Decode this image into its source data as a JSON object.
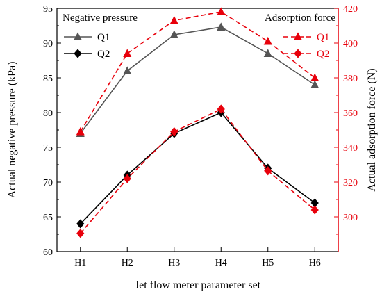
{
  "chart_data": {
    "type": "line",
    "title": "",
    "xlabel": "Jet flow meter parameter set",
    "categories": [
      "H1",
      "H2",
      "H3",
      "H4",
      "H5",
      "H6"
    ],
    "y_left": {
      "label": "Actual negative pressure (kPa)",
      "lim": [
        60,
        95
      ],
      "ticks": [
        60,
        65,
        70,
        75,
        80,
        85,
        90,
        95
      ],
      "color": "#000000"
    },
    "y_right": {
      "label": "Actual adsorption force (N)",
      "lim": [
        280,
        420
      ],
      "ticks": [
        300,
        320,
        340,
        360,
        380,
        400,
        420
      ],
      "color": "#e8000b"
    },
    "legends": [
      {
        "title": "Negative pressure",
        "placement": "top-left",
        "entries": [
          "Q1",
          "Q2"
        ]
      },
      {
        "title": "Adsorption force",
        "placement": "top-right",
        "entries": [
          "Q1",
          "Q2"
        ]
      }
    ],
    "series": [
      {
        "name": "Q1",
        "axis": "left",
        "marker": "triangle",
        "line": "solid",
        "color": "#555555",
        "values": [
          77,
          86,
          91.2,
          92.3,
          88.5,
          84
        ]
      },
      {
        "name": "Q2",
        "axis": "left",
        "marker": "diamond",
        "line": "solid",
        "color": "#000000",
        "values": [
          64,
          71,
          77,
          80,
          72,
          67
        ]
      },
      {
        "name": "Q1",
        "axis": "right",
        "marker": "triangle",
        "line": "dashed",
        "color": "#e8000b",
        "values": [
          349,
          394,
          413,
          418,
          401,
          380
        ]
      },
      {
        "name": "Q2",
        "axis": "right",
        "marker": "diamond",
        "line": "dashed",
        "color": "#e8000b",
        "values": [
          290.5,
          322,
          349,
          362,
          326.5,
          304
        ]
      }
    ],
    "grid": false
  }
}
